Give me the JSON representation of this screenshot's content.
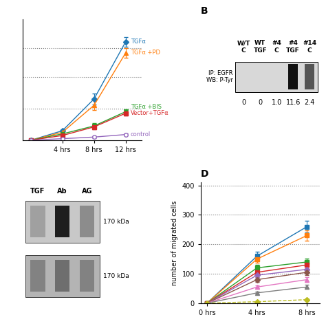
{
  "chart_data": [
    {
      "type": "line",
      "x": [
        0,
        4,
        8,
        12
      ],
      "series": [
        {
          "name": "TGFα",
          "marker": "diamond",
          "line_style": "solid",
          "values": [
            0,
            30,
            130,
            310
          ],
          "yerr": [
            0,
            5,
            18,
            15
          ]
        },
        {
          "name": "TGFα +PD",
          "marker": "triangle_up",
          "line_style": "solid",
          "values": [
            0,
            25,
            110,
            275
          ],
          "yerr": [
            0,
            5,
            15,
            15
          ]
        },
        {
          "name": "TGFα +BIS",
          "marker": "triangle_down",
          "line_style": "solid",
          "values": [
            0,
            20,
            45,
            90
          ],
          "yerr": [
            0,
            4,
            8,
            8
          ]
        },
        {
          "name": "Vector+TGFα",
          "marker": "square",
          "line_style": "solid",
          "values": [
            0,
            15,
            42,
            85
          ],
          "yerr": [
            0,
            4,
            7,
            7
          ]
        },
        {
          "name": "control",
          "marker": "open_circle",
          "line_style": "solid",
          "values": [
            0,
            5,
            10,
            18
          ],
          "yerr": [
            0,
            2,
            3,
            3
          ]
        }
      ],
      "xlim": [
        -1,
        14
      ],
      "ylim": [
        0,
        380
      ],
      "xticks": [
        {
          "value": 4,
          "label": "4 hrs"
        },
        {
          "value": 8,
          "label": "8 hrs"
        },
        {
          "value": 12,
          "label": "12 hrs"
        }
      ],
      "reference_lines": [
        290,
        200,
        100
      ],
      "tick_labels": "x"
    },
    {
      "type": "blot",
      "title": "B",
      "categories": [
        "W/T\nC",
        "WT\nTGF",
        "#4\nC",
        "#4\nTGF",
        "#14\nC"
      ],
      "values": [
        0,
        0,
        1.0,
        11.6,
        2.4
      ],
      "annotation": "IP: EGFR\nWB: P-Tyr",
      "color": "#d8d8d8",
      "colors": [
        "#d8d8d8",
        "#d8d8d8",
        "#d8d8d8",
        "#111111",
        "#555555"
      ]
    },
    {
      "type": "gel",
      "categories": [
        "TGF",
        "Ab",
        "AG"
      ],
      "series": [
        {
          "name": "170 kDa",
          "color": "#c8c8c8",
          "colors": [
            "#a0a0a0",
            "#1e1e1e",
            "#8c8c8c"
          ]
        },
        {
          "name": "170 kDa",
          "color": "#b4b4b4",
          "colors": [
            "#828282",
            "#6e6e6e",
            "#828282"
          ]
        }
      ]
    },
    {
      "type": "line",
      "title": "D",
      "x": [
        0,
        4,
        8
      ],
      "series": [
        {
          "marker": "square",
          "line_style": "solid",
          "values": [
            0,
            160,
            260
          ],
          "yerr": [
            0,
            15,
            20
          ]
        },
        {
          "marker": "square",
          "line_style": "solid",
          "values": [
            0,
            150,
            230
          ],
          "yerr": [
            0,
            12,
            18
          ]
        },
        {
          "marker": "square",
          "line_style": "solid",
          "values": [
            0,
            120,
            140
          ],
          "yerr": [
            0,
            10,
            12
          ]
        },
        {
          "marker": "square",
          "line_style": "solid",
          "values": [
            0,
            105,
            130
          ],
          "yerr": [
            0,
            9,
            11
          ]
        },
        {
          "marker": "diamond",
          "line_style": "solid",
          "values": [
            0,
            95,
            115
          ],
          "yerr": [
            0,
            8,
            10
          ]
        },
        {
          "marker": "diamond",
          "line_style": "solid",
          "values": [
            0,
            80,
            105
          ],
          "yerr": [
            0,
            8,
            9
          ]
        },
        {
          "marker": "triangle_up",
          "line_style": "solid",
          "values": [
            0,
            55,
            80
          ],
          "yerr": [
            0,
            6,
            8
          ]
        },
        {
          "marker": "triangle_up",
          "line_style": "solid",
          "values": [
            0,
            35,
            55
          ],
          "yerr": [
            0,
            5,
            7
          ]
        },
        {
          "marker": "diamond",
          "line_style": "dashed",
          "values": [
            0,
            5,
            12
          ],
          "yerr": [
            0,
            2,
            3
          ]
        }
      ],
      "xlim": [
        -0.5,
        9
      ],
      "ylim": [
        0,
        410
      ],
      "xticks": [
        {
          "value": 0,
          "label": "0 hrs"
        },
        {
          "value": 4,
          "label": "4 hrs"
        },
        {
          "value": 8,
          "label": "8 hrs"
        }
      ],
      "yticks": [
        0,
        100,
        200,
        300,
        400
      ],
      "reference_lines": [
        100,
        200,
        300,
        400
      ],
      "ylabel": "number of migrated cells"
    }
  ]
}
